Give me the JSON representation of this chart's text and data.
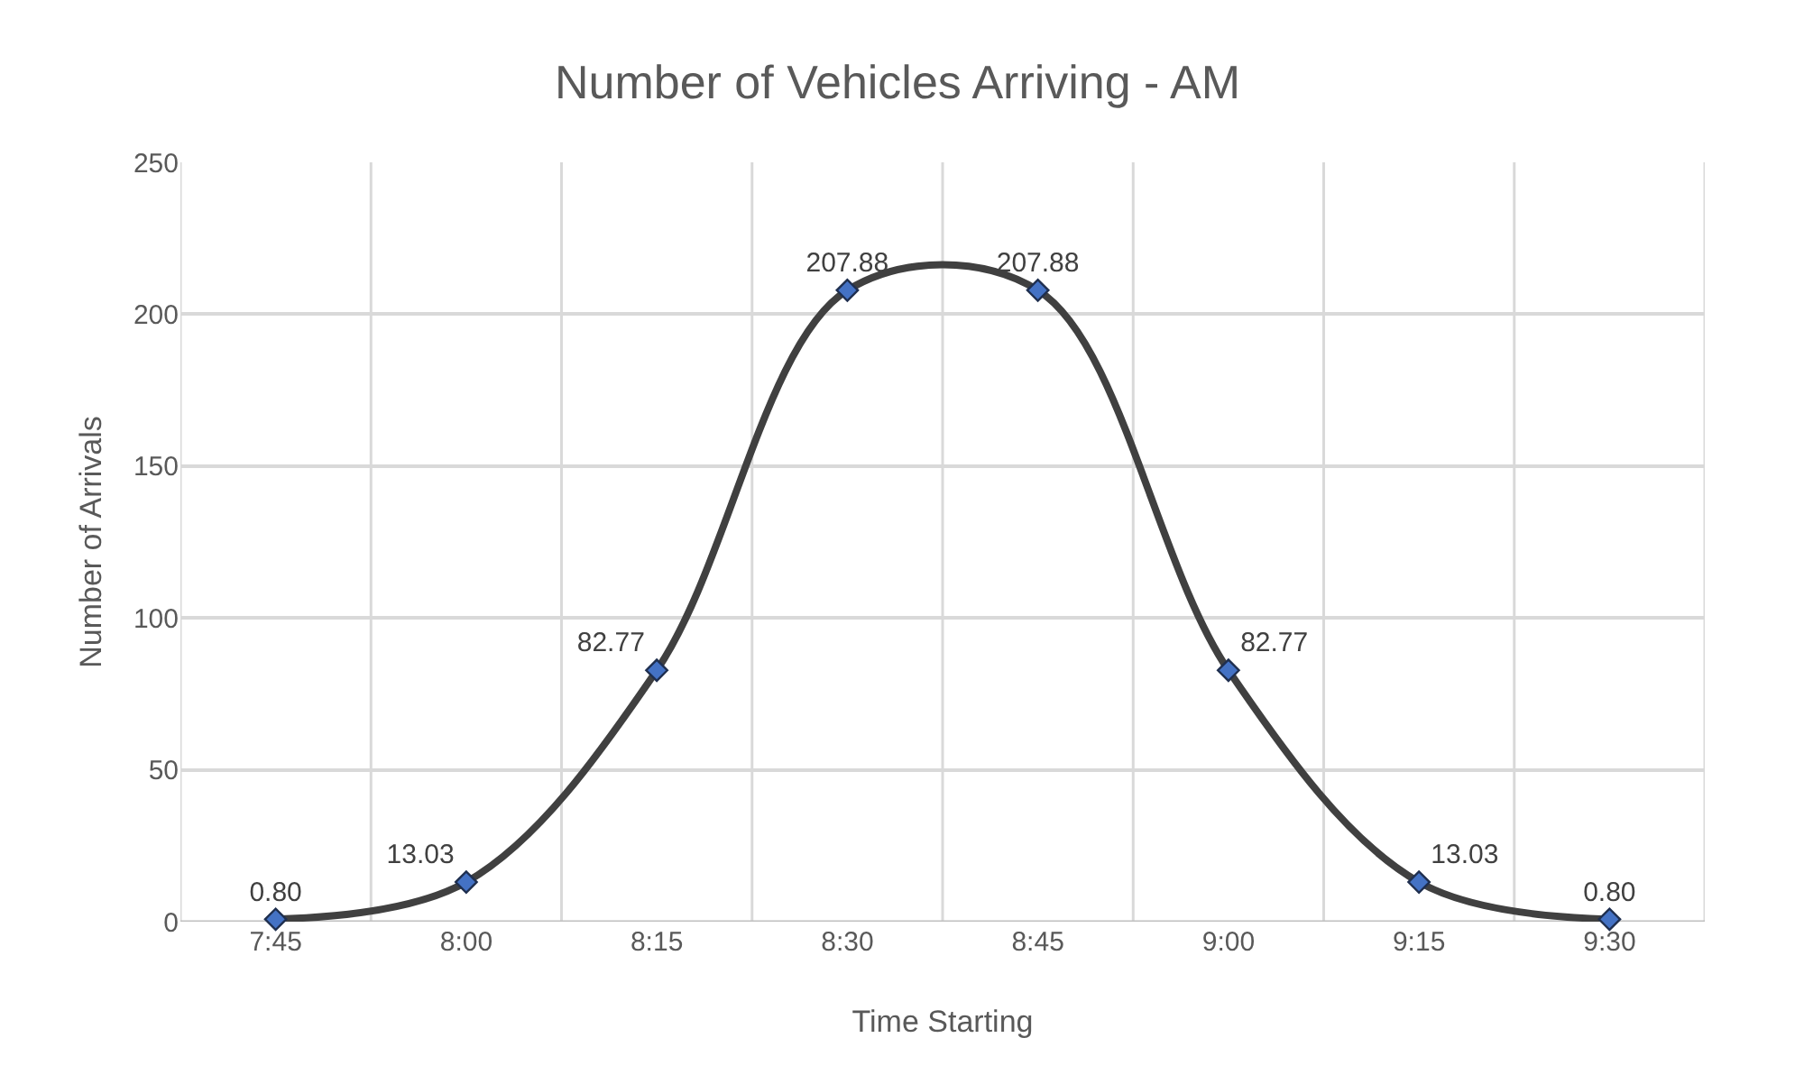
{
  "chart_data": {
    "type": "line",
    "title": "Number of Vehicles Arriving - AM",
    "xlabel": "Time Starting",
    "ylabel": "Number of Arrivals",
    "categories": [
      "7:45",
      "8:00",
      "8:15",
      "8:30",
      "8:45",
      "9:00",
      "9:15",
      "9:30"
    ],
    "series": [
      {
        "color": "#404040",
        "values": [
          0.8,
          13.03,
          82.77,
          207.88,
          207.88,
          82.77,
          13.03,
          0.8
        ],
        "value_labels": [
          "0.80",
          "13.03",
          "82.77",
          "207.88",
          "207.88",
          "82.77",
          "13.03",
          "0.80"
        ]
      }
    ],
    "ylim": [
      0,
      250
    ],
    "yticks": [
      0,
      50,
      100,
      150,
      200,
      250
    ],
    "grid": true,
    "marker": "diamond",
    "line_style": "solid"
  }
}
